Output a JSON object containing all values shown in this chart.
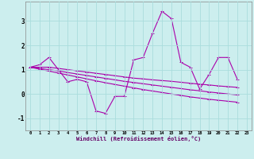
{
  "xlabel": "Windchill (Refroidissement éolien,°C)",
  "x_hours": [
    0,
    1,
    2,
    3,
    4,
    5,
    6,
    7,
    8,
    9,
    10,
    11,
    12,
    13,
    14,
    15,
    16,
    17,
    18,
    19,
    20,
    21,
    22,
    23
  ],
  "line1": [
    1.1,
    1.2,
    1.5,
    1.0,
    0.5,
    0.6,
    0.5,
    -0.7,
    -0.8,
    -0.1,
    -0.1,
    1.4,
    1.5,
    2.5,
    3.4,
    3.1,
    1.3,
    1.1,
    0.2,
    0.8,
    1.5,
    1.5,
    0.6,
    null
  ],
  "line2": [
    1.1,
    1.1,
    1.1,
    1.05,
    1.0,
    0.95,
    0.9,
    0.85,
    0.8,
    0.75,
    0.7,
    0.65,
    0.62,
    0.58,
    0.55,
    0.52,
    0.48,
    0.44,
    0.4,
    0.37,
    0.33,
    0.3,
    0.27,
    null
  ],
  "line3": [
    1.1,
    1.05,
    1.0,
    0.95,
    0.88,
    0.82,
    0.76,
    0.7,
    0.64,
    0.58,
    0.52,
    0.47,
    0.42,
    0.37,
    0.32,
    0.27,
    0.22,
    0.17,
    0.13,
    0.08,
    0.04,
    0.0,
    -0.04,
    null
  ],
  "line4": [
    1.1,
    1.02,
    0.94,
    0.86,
    0.78,
    0.7,
    0.62,
    0.54,
    0.46,
    0.39,
    0.32,
    0.25,
    0.18,
    0.12,
    0.06,
    0.0,
    -0.06,
    -0.12,
    -0.17,
    -0.22,
    -0.26,
    -0.3,
    -0.34,
    null
  ],
  "line_color": "#aa00aa",
  "bg_color": "#cceeee",
  "grid_color": "#aadddd",
  "ylim": [
    -1.5,
    3.8
  ],
  "yticks": [
    -1,
    0,
    1,
    2,
    3
  ],
  "marker": "+"
}
